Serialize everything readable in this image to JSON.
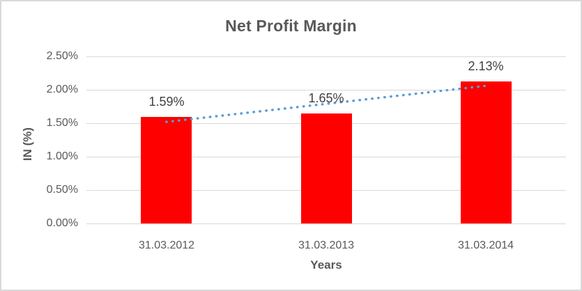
{
  "window": {
    "background": "#FFFFFF",
    "border_color": "#D9D9D9"
  },
  "chart_data": {
    "type": "bar",
    "title": "Net Profit Margin",
    "xlabel": "Years",
    "ylabel": "IN (%)",
    "categories": [
      "31.03.2012",
      "31.03.2013",
      "31.03.2014"
    ],
    "values": [
      1.59,
      1.65,
      2.13
    ],
    "data_labels": [
      "1.59%",
      "1.65%",
      "2.13%"
    ],
    "ylim": [
      0,
      2.5
    ],
    "ytick_step": 0.5,
    "ytick_labels": [
      "0.00%",
      "0.50%",
      "1.00%",
      "1.50%",
      "2.00%",
      "2.50%"
    ],
    "grid": true,
    "legend": false,
    "bar_color": "#FF0000",
    "gridline_color": "#D9D9D9",
    "trendline": {
      "type": "linear",
      "line_style": "dotted",
      "color": "#5B9BD5"
    },
    "text_colors": {
      "title": "#595959",
      "axis_titles": "#595959",
      "tick_labels": "#595959",
      "data_labels": "#404040"
    }
  }
}
